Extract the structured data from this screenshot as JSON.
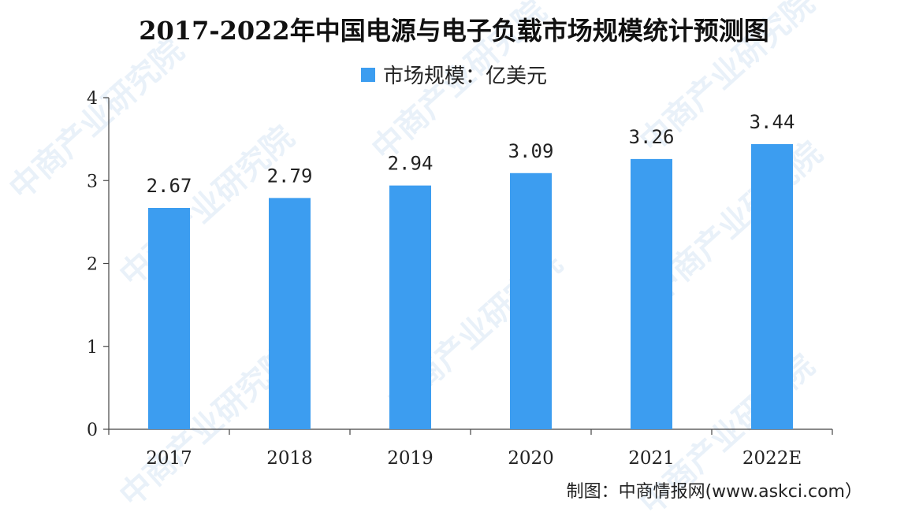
{
  "watermark_text": "中商产业研究院",
  "source_text": "制图：中商情报网(www.askci.com）",
  "chart_data": {
    "type": "bar",
    "title": "2017-2022年中国电源与电子负载市场规模统计预测图",
    "categories": [
      "2017",
      "2018",
      "2019",
      "2020",
      "2021",
      "2022E"
    ],
    "series": [
      {
        "name": "市场规模：亿美元",
        "values": [
          2.67,
          2.79,
          2.94,
          3.09,
          3.26,
          3.44
        ]
      }
    ],
    "data_labels": [
      "2.67",
      "2.79",
      "2.94",
      "3.09",
      "3.26",
      "3.44"
    ],
    "y_ticks": [
      "0",
      "1",
      "2",
      "3",
      "4"
    ],
    "ylim": [
      0,
      4
    ],
    "xlabel": "",
    "ylabel": "",
    "grid": false,
    "legend_position": "top",
    "bar_color": "#3c9df0"
  }
}
